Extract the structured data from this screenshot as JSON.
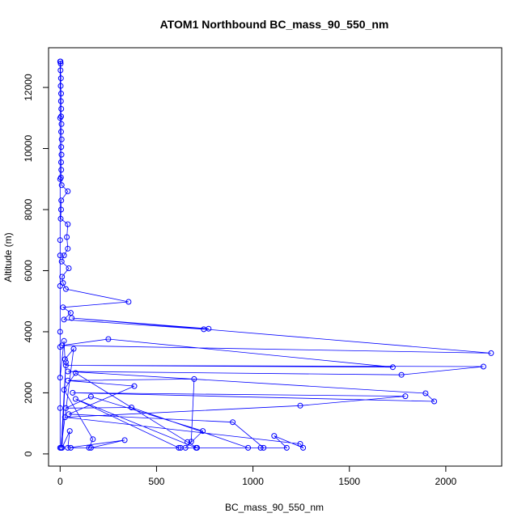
{
  "chart_data": {
    "type": "line",
    "title": "ATOM1 Northbound BC_mass_90_550_nm",
    "xlabel": "BC_mass_90_550_nm",
    "ylabel": "Altitude (m)",
    "xlim": [
      -60,
      2290
    ],
    "ylim": [
      -400,
      13300
    ],
    "xticks": [
      0,
      500,
      1000,
      1500,
      2000
    ],
    "yticks": [
      0,
      2000,
      4000,
      6000,
      8000,
      10000,
      12000
    ],
    "grid": false,
    "legend": "none",
    "line_color": "#0000ff",
    "marker": "open-circle",
    "series": [
      {
        "points": [
          [
            2,
            12850
          ],
          [
            3,
            12780
          ],
          [
            2,
            12560
          ],
          [
            4,
            12300
          ],
          [
            3,
            12050
          ],
          [
            5,
            11800
          ],
          [
            4,
            11550
          ],
          [
            6,
            11300
          ],
          [
            5,
            11050
          ],
          [
            7,
            10800
          ],
          [
            5,
            10550
          ],
          [
            8,
            10300
          ],
          [
            6,
            10050
          ],
          [
            7,
            9800
          ],
          [
            5,
            9550
          ],
          [
            6,
            9300
          ],
          [
            4,
            9050
          ],
          [
            8,
            8800
          ],
          [
            40,
            8600
          ],
          [
            6,
            8300
          ],
          [
            5,
            8000
          ],
          [
            3,
            7700
          ],
          [
            40,
            7520
          ],
          [
            35,
            7100
          ],
          [
            40,
            6720
          ],
          [
            20,
            6500
          ],
          [
            8,
            6300
          ],
          [
            45,
            6080
          ],
          [
            10,
            5800
          ],
          [
            15,
            5600
          ],
          [
            30,
            5400
          ],
          [
            355,
            4980
          ],
          [
            15,
            4800
          ],
          [
            55,
            4620
          ],
          [
            20,
            4400
          ],
          [
            745,
            4080
          ],
          [
            770,
            4100
          ],
          [
            60,
            4450
          ],
          [
            2235,
            3300
          ],
          [
            10,
            3550
          ],
          [
            250,
            3760
          ],
          [
            1725,
            2840
          ],
          [
            30,
            2900
          ],
          [
            2195,
            2860
          ],
          [
            1770,
            2590
          ],
          [
            40,
            2700
          ],
          [
            1895,
            1985
          ],
          [
            1940,
            1720
          ],
          [
            65,
            2000
          ],
          [
            1790,
            1890
          ],
          [
            1245,
            1580
          ],
          [
            25,
            1200
          ],
          [
            1245,
            330
          ],
          [
            1260,
            200
          ],
          [
            1110,
            590
          ],
          [
            1175,
            200
          ],
          [
            55,
            200
          ],
          [
            1040,
            200
          ],
          [
            1055,
            200
          ],
          [
            895,
            1040
          ],
          [
            45,
            1300
          ],
          [
            385,
            2220
          ],
          [
            40,
            2400
          ],
          [
            695,
            2450
          ],
          [
            680,
            400
          ],
          [
            650,
            200
          ],
          [
            740,
            750
          ],
          [
            160,
            1880
          ],
          [
            30,
            1500
          ],
          [
            370,
            1520
          ],
          [
            975,
            200
          ],
          [
            625,
            200
          ],
          [
            615,
            200
          ],
          [
            80,
            1800
          ],
          [
            705,
            200
          ],
          [
            710,
            200
          ],
          [
            660,
            390
          ],
          [
            80,
            2650
          ],
          [
            20,
            2100
          ],
          [
            170,
            480
          ],
          [
            150,
            200
          ],
          [
            160,
            200
          ],
          [
            335,
            450
          ],
          [
            40,
            200
          ],
          [
            50,
            750
          ],
          [
            10,
            200
          ],
          [
            30,
            3000
          ],
          [
            5,
            200
          ],
          [
            70,
            3440
          ],
          [
            25,
            3100
          ],
          [
            20,
            3700
          ],
          [
            0,
            2500
          ],
          [
            0,
            200
          ],
          [
            0,
            3500
          ],
          [
            0,
            1500
          ],
          [
            0,
            4000
          ],
          [
            0,
            5500
          ],
          [
            0,
            7000
          ],
          [
            0,
            6500
          ],
          [
            0,
            9000
          ],
          [
            0,
            11000
          ],
          [
            0,
            12850
          ]
        ]
      }
    ]
  }
}
